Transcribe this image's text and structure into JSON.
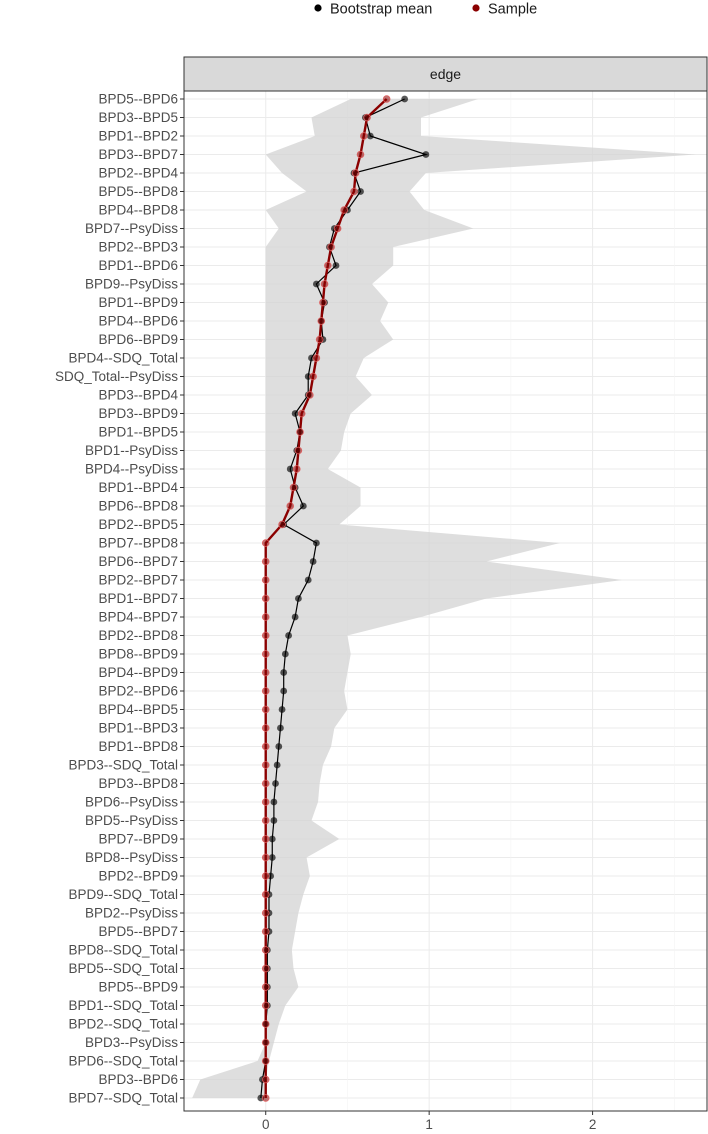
{
  "chart_data": {
    "type": "line",
    "facet_label": "edge",
    "legend": {
      "placement": "top",
      "items": [
        {
          "name": "Bootstrap mean",
          "color": "#000000"
        },
        {
          "name": "Sample",
          "color": "#8b0000"
        }
      ]
    },
    "xlim": [
      -0.5,
      2.7
    ],
    "x_ticks": [
      0,
      1,
      2
    ],
    "x_tick_labels": [
      "0",
      "1",
      "2"
    ],
    "grid": true,
    "ci_color": "#d3d3d3",
    "sample_color": "#8b0000",
    "bootstrap_color": "#000000",
    "edges": [
      {
        "edge": "BPD5--BPD6",
        "sample": 0.74,
        "boot": 0.85,
        "lower": 0.52,
        "upper": 1.3
      },
      {
        "edge": "BPD3--BPD5",
        "sample": 0.62,
        "boot": 0.61,
        "lower": 0.28,
        "upper": 0.95
      },
      {
        "edge": "BPD1--BPD2",
        "sample": 0.6,
        "boot": 0.64,
        "lower": 0.3,
        "upper": 0.95
      },
      {
        "edge": "BPD3--BPD7",
        "sample": 0.58,
        "boot": 0.98,
        "lower": 0.0,
        "upper": 2.63
      },
      {
        "edge": "BPD2--BPD4",
        "sample": 0.55,
        "boot": 0.54,
        "lower": 0.1,
        "upper": 0.98
      },
      {
        "edge": "BPD5--BPD8",
        "sample": 0.54,
        "boot": 0.58,
        "lower": 0.25,
        "upper": 0.88
      },
      {
        "edge": "BPD4--BPD8",
        "sample": 0.48,
        "boot": 0.5,
        "lower": 0.0,
        "upper": 0.97
      },
      {
        "edge": "BPD7--PsyDiss",
        "sample": 0.44,
        "boot": 0.42,
        "lower": 0.08,
        "upper": 1.27
      },
      {
        "edge": "BPD2--BPD3",
        "sample": 0.4,
        "boot": 0.39,
        "lower": 0.0,
        "upper": 0.78
      },
      {
        "edge": "BPD1--BPD6",
        "sample": 0.38,
        "boot": 0.43,
        "lower": 0.0,
        "upper": 0.78
      },
      {
        "edge": "BPD9--PsyDiss",
        "sample": 0.36,
        "boot": 0.31,
        "lower": 0.0,
        "upper": 0.65
      },
      {
        "edge": "BPD1--BPD9",
        "sample": 0.35,
        "boot": 0.36,
        "lower": 0.0,
        "upper": 0.75
      },
      {
        "edge": "BPD4--BPD6",
        "sample": 0.34,
        "boot": 0.34,
        "lower": 0.0,
        "upper": 0.7
      },
      {
        "edge": "BPD6--BPD9",
        "sample": 0.33,
        "boot": 0.35,
        "lower": 0.0,
        "upper": 0.78
      },
      {
        "edge": "BPD4--SDQ_Total",
        "sample": 0.31,
        "boot": 0.28,
        "lower": 0.0,
        "upper": 0.6
      },
      {
        "edge": "SDQ_Total--PsyDiss",
        "sample": 0.29,
        "boot": 0.26,
        "lower": 0.0,
        "upper": 0.55
      },
      {
        "edge": "BPD3--BPD4",
        "sample": 0.27,
        "boot": 0.26,
        "lower": 0.0,
        "upper": 0.65
      },
      {
        "edge": "BPD3--BPD9",
        "sample": 0.22,
        "boot": 0.18,
        "lower": 0.0,
        "upper": 0.52
      },
      {
        "edge": "BPD1--BPD5",
        "sample": 0.21,
        "boot": 0.21,
        "lower": 0.0,
        "upper": 0.48
      },
      {
        "edge": "BPD1--PsyDiss",
        "sample": 0.2,
        "boot": 0.19,
        "lower": 0.0,
        "upper": 0.46
      },
      {
        "edge": "BPD4--PsyDiss",
        "sample": 0.19,
        "boot": 0.15,
        "lower": 0.0,
        "upper": 0.38
      },
      {
        "edge": "BPD1--BPD4",
        "sample": 0.17,
        "boot": 0.18,
        "lower": 0.0,
        "upper": 0.58
      },
      {
        "edge": "BPD6--BPD8",
        "sample": 0.15,
        "boot": 0.23,
        "lower": 0.0,
        "upper": 0.58
      },
      {
        "edge": "BPD2--BPD5",
        "sample": 0.1,
        "boot": 0.11,
        "lower": 0.0,
        "upper": 0.45
      },
      {
        "edge": "BPD7--BPD8",
        "sample": 0.0,
        "boot": 0.31,
        "lower": 0.0,
        "upper": 1.8
      },
      {
        "edge": "BPD6--BPD7",
        "sample": 0.0,
        "boot": 0.29,
        "lower": 0.0,
        "upper": 1.35
      },
      {
        "edge": "BPD2--BPD7",
        "sample": 0.0,
        "boot": 0.26,
        "lower": 0.0,
        "upper": 2.18
      },
      {
        "edge": "BPD1--BPD7",
        "sample": 0.0,
        "boot": 0.2,
        "lower": 0.0,
        "upper": 1.35
      },
      {
        "edge": "BPD4--BPD7",
        "sample": 0.0,
        "boot": 0.18,
        "lower": 0.0,
        "upper": 0.95
      },
      {
        "edge": "BPD2--BPD8",
        "sample": 0.0,
        "boot": 0.14,
        "lower": 0.0,
        "upper": 0.5
      },
      {
        "edge": "BPD8--BPD9",
        "sample": 0.0,
        "boot": 0.12,
        "lower": 0.0,
        "upper": 0.52
      },
      {
        "edge": "BPD4--BPD9",
        "sample": 0.0,
        "boot": 0.11,
        "lower": 0.0,
        "upper": 0.5
      },
      {
        "edge": "BPD2--BPD6",
        "sample": 0.0,
        "boot": 0.11,
        "lower": 0.0,
        "upper": 0.48
      },
      {
        "edge": "BPD4--BPD5",
        "sample": 0.0,
        "boot": 0.1,
        "lower": 0.0,
        "upper": 0.5
      },
      {
        "edge": "BPD1--BPD3",
        "sample": 0.0,
        "boot": 0.09,
        "lower": 0.0,
        "upper": 0.42
      },
      {
        "edge": "BPD1--BPD8",
        "sample": 0.0,
        "boot": 0.08,
        "lower": 0.0,
        "upper": 0.4
      },
      {
        "edge": "BPD3--SDQ_Total",
        "sample": 0.0,
        "boot": 0.07,
        "lower": 0.0,
        "upper": 0.35
      },
      {
        "edge": "BPD3--BPD8",
        "sample": 0.0,
        "boot": 0.06,
        "lower": 0.0,
        "upper": 0.33
      },
      {
        "edge": "BPD6--PsyDiss",
        "sample": 0.0,
        "boot": 0.05,
        "lower": 0.0,
        "upper": 0.32
      },
      {
        "edge": "BPD5--PsyDiss",
        "sample": 0.0,
        "boot": 0.05,
        "lower": 0.0,
        "upper": 0.28
      },
      {
        "edge": "BPD7--BPD9",
        "sample": 0.0,
        "boot": 0.04,
        "lower": 0.0,
        "upper": 0.45
      },
      {
        "edge": "BPD8--PsyDiss",
        "sample": 0.0,
        "boot": 0.04,
        "lower": 0.0,
        "upper": 0.25
      },
      {
        "edge": "BPD2--BPD9",
        "sample": 0.0,
        "boot": 0.03,
        "lower": 0.0,
        "upper": 0.27
      },
      {
        "edge": "BPD9--SDQ_Total",
        "sample": 0.0,
        "boot": 0.02,
        "lower": 0.0,
        "upper": 0.23
      },
      {
        "edge": "BPD2--PsyDiss",
        "sample": 0.0,
        "boot": 0.02,
        "lower": 0.0,
        "upper": 0.2
      },
      {
        "edge": "BPD5--BPD7",
        "sample": 0.0,
        "boot": 0.02,
        "lower": 0.0,
        "upper": 0.18
      },
      {
        "edge": "BPD8--SDQ_Total",
        "sample": 0.0,
        "boot": 0.01,
        "lower": 0.0,
        "upper": 0.16
      },
      {
        "edge": "BPD5--SDQ_Total",
        "sample": 0.0,
        "boot": 0.01,
        "lower": 0.0,
        "upper": 0.17
      },
      {
        "edge": "BPD5--BPD9",
        "sample": 0.0,
        "boot": 0.01,
        "lower": 0.0,
        "upper": 0.2
      },
      {
        "edge": "BPD1--SDQ_Total",
        "sample": 0.0,
        "boot": 0.01,
        "lower": 0.0,
        "upper": 0.12
      },
      {
        "edge": "BPD2--SDQ_Total",
        "sample": 0.0,
        "boot": 0.0,
        "lower": 0.0,
        "upper": 0.08
      },
      {
        "edge": "BPD3--PsyDiss",
        "sample": 0.0,
        "boot": 0.0,
        "lower": 0.0,
        "upper": 0.05
      },
      {
        "edge": "BPD6--SDQ_Total",
        "sample": 0.0,
        "boot": 0.0,
        "lower": -0.05,
        "upper": 0.02
      },
      {
        "edge": "BPD3--BPD6",
        "sample": 0.0,
        "boot": -0.02,
        "lower": -0.4,
        "upper": 0.0
      },
      {
        "edge": "BPD7--SDQ_Total",
        "sample": 0.0,
        "boot": -0.03,
        "lower": -0.45,
        "upper": 0.0
      }
    ]
  }
}
